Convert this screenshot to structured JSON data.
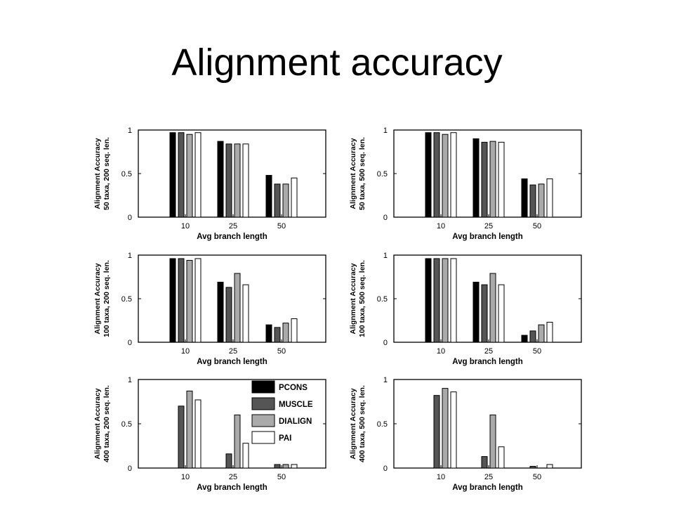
{
  "slide": {
    "title": "Alignment accuracy"
  },
  "series_colors": [
    "#000000",
    "#555555",
    "#aaaaaa",
    "#ffffff"
  ],
  "legend": {
    "entries": [
      "PCONS",
      "MUSCLE",
      "DIALIGN",
      "PAI"
    ]
  },
  "chart_data": [
    {
      "type": "bar",
      "xlabel": "Avg branch length",
      "ylabel_lines": [
        "Alignment Accuracy",
        "50 taxa, 200 seq. len."
      ],
      "categories": [
        "10",
        "25",
        "50"
      ],
      "ylim": [
        0,
        1
      ],
      "yticks": [
        "0",
        "0.5",
        "1"
      ],
      "series": [
        {
          "name": "PCONS",
          "values": [
            0.97,
            0.87,
            0.48
          ]
        },
        {
          "name": "MUSCLE",
          "values": [
            0.97,
            0.84,
            0.38
          ]
        },
        {
          "name": "DIALIGN",
          "values": [
            0.95,
            0.84,
            0.38
          ]
        },
        {
          "name": "PAI",
          "values": [
            0.97,
            0.84,
            0.45
          ]
        }
      ]
    },
    {
      "type": "bar",
      "xlabel": "Avg branch length",
      "ylabel_lines": [
        "Alignment Accuracy",
        "50 taxa, 500 seq. len."
      ],
      "categories": [
        "10",
        "25",
        "50"
      ],
      "ylim": [
        0,
        1
      ],
      "yticks": [
        "0",
        "0.5",
        "1"
      ],
      "series": [
        {
          "name": "PCONS",
          "values": [
            0.97,
            0.9,
            0.44
          ]
        },
        {
          "name": "MUSCLE",
          "values": [
            0.97,
            0.86,
            0.37
          ]
        },
        {
          "name": "DIALIGN",
          "values": [
            0.95,
            0.87,
            0.38
          ]
        },
        {
          "name": "PAI",
          "values": [
            0.97,
            0.86,
            0.44
          ]
        }
      ]
    },
    {
      "type": "bar",
      "xlabel": "Avg branch length",
      "ylabel_lines": [
        "Alignment Accuracy",
        "100 taxa, 200 seq. len."
      ],
      "categories": [
        "10",
        "25",
        "50"
      ],
      "ylim": [
        0,
        1
      ],
      "yticks": [
        "0",
        "0.5",
        "1"
      ],
      "series": [
        {
          "name": "PCONS",
          "values": [
            0.96,
            0.69,
            0.2
          ]
        },
        {
          "name": "MUSCLE",
          "values": [
            0.96,
            0.63,
            0.17
          ]
        },
        {
          "name": "DIALIGN",
          "values": [
            0.94,
            0.79,
            0.22
          ]
        },
        {
          "name": "PAI",
          "values": [
            0.96,
            0.66,
            0.27
          ]
        }
      ]
    },
    {
      "type": "bar",
      "xlabel": "Avg branch length",
      "ylabel_lines": [
        "Alignment Accuracy",
        "100 taxa, 500 seq. len."
      ],
      "categories": [
        "10",
        "25",
        "50"
      ],
      "ylim": [
        0,
        1
      ],
      "yticks": [
        "0",
        "0.5",
        "1"
      ],
      "series": [
        {
          "name": "PCONS",
          "values": [
            0.96,
            0.69,
            0.08
          ]
        },
        {
          "name": "MUSCLE",
          "values": [
            0.96,
            0.66,
            0.13
          ]
        },
        {
          "name": "DIALIGN",
          "values": [
            0.96,
            0.79,
            0.2
          ]
        },
        {
          "name": "PAI",
          "values": [
            0.96,
            0.66,
            0.23
          ]
        }
      ]
    },
    {
      "type": "bar",
      "xlabel": "Avg branch length",
      "ylabel_lines": [
        "Alignment Accuracy",
        "400 taxa, 200 seq. len."
      ],
      "categories": [
        "10",
        "25",
        "50"
      ],
      "ylim": [
        0,
        1
      ],
      "yticks": [
        "0",
        "0.5",
        "1"
      ],
      "show_legend": true,
      "legend_position": "top-right",
      "series": [
        {
          "name": "PCONS",
          "values": [
            0,
            0,
            0
          ]
        },
        {
          "name": "MUSCLE",
          "values": [
            0.7,
            0.16,
            0.04
          ]
        },
        {
          "name": "DIALIGN",
          "values": [
            0.87,
            0.6,
            0.04
          ]
        },
        {
          "name": "PAI",
          "values": [
            0.77,
            0.28,
            0.04
          ]
        }
      ]
    },
    {
      "type": "bar",
      "xlabel": "Avg branch length",
      "ylabel_lines": [
        "Alignment Accuracy",
        "400 taxa, 500 seq. len."
      ],
      "categories": [
        "10",
        "25",
        "50"
      ],
      "ylim": [
        0,
        1
      ],
      "yticks": [
        "0",
        "0.5",
        "1"
      ],
      "series": [
        {
          "name": "PCONS",
          "values": [
            0,
            0,
            0
          ]
        },
        {
          "name": "MUSCLE",
          "values": [
            0.82,
            0.13,
            0.02
          ]
        },
        {
          "name": "DIALIGN",
          "values": [
            0.9,
            0.6,
            0
          ]
        },
        {
          "name": "PAI",
          "values": [
            0.86,
            0.24,
            0.04
          ]
        }
      ]
    }
  ]
}
